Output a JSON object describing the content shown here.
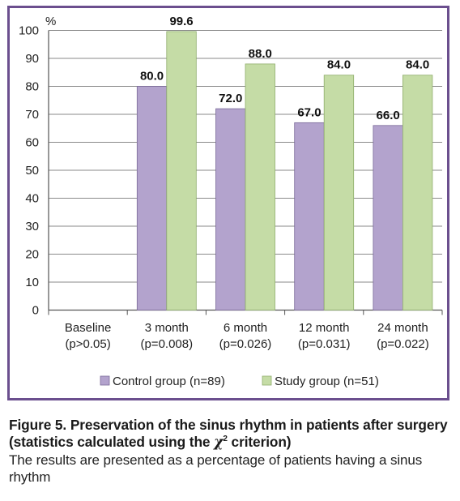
{
  "chart_data": {
    "type": "bar",
    "ylabel": "%",
    "ylim": [
      0,
      100
    ],
    "yticks": [
      0,
      10,
      20,
      30,
      40,
      50,
      60,
      70,
      80,
      90,
      100
    ],
    "grid": true,
    "legend_position": "bottom",
    "categories": [
      {
        "line1": "Baseline",
        "line2": "(p>0.05)"
      },
      {
        "line1": "3 month",
        "line2": "(p=0.008)"
      },
      {
        "line1": "6 month",
        "line2": "(p=0.026)"
      },
      {
        "line1": "12 month",
        "line2": "(p=0.031)"
      },
      {
        "line1": "24 month",
        "line2": "(p=0.022)"
      }
    ],
    "series": [
      {
        "name": "Control group (n=89)",
        "color": "#b3a3cd",
        "stroke": "#7a6a99",
        "values": [
          null,
          80.0,
          72.0,
          67.0,
          66.0
        ],
        "labels": [
          "",
          "80.0",
          "72.0",
          "67.0",
          "66.0"
        ]
      },
      {
        "name": "Study group (n=51)",
        "color": "#c5dca6",
        "stroke": "#8fae6c",
        "values": [
          null,
          99.6,
          88.0,
          84.0,
          84.0
        ],
        "labels": [
          "",
          "99.6",
          "88.0",
          "84.0",
          "84.0"
        ]
      }
    ]
  },
  "caption": {
    "title_main": "Figure 5. Preservation of the sinus rhythm in patients after surgery (statistics calculated using the ",
    "chi": "χ",
    "superscript": "2",
    "title_end": " criterion)",
    "body": "The results are presented as a percentage of patients having a sinus rhythm"
  },
  "colors": {
    "frame": "#6b4f8e",
    "grid": "#8a8a8a"
  }
}
